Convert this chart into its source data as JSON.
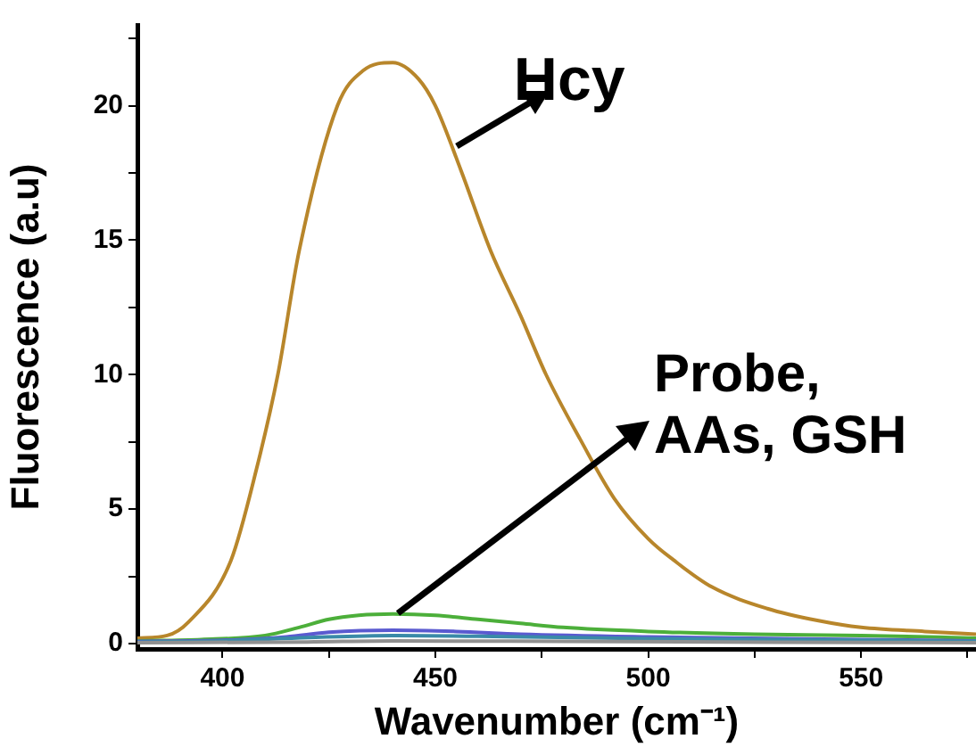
{
  "chart_data": {
    "type": "line",
    "xlabel": "Wavenumber (cm⁻¹)",
    "ylabel": "Fluorescence (a.u)",
    "xlim": [
      380,
      577
    ],
    "ylim": [
      -0.2,
      23
    ],
    "xticks": [
      400,
      {
        "value": 425,
        "label": null
      },
      450,
      {
        "value": 475,
        "label": null
      },
      500,
      {
        "value": 525,
        "label": null
      },
      550,
      {
        "value": 575,
        "label": null
      }
    ],
    "yticks": [
      0,
      {
        "value": 2.5,
        "label": null
      },
      5,
      {
        "value": 7.5,
        "label": null
      },
      10,
      {
        "value": 12.5,
        "label": null
      },
      15,
      {
        "value": 17.5,
        "label": null
      },
      20,
      {
        "value": 22.5,
        "label": null
      }
    ],
    "grid": false,
    "legend": false,
    "marker": "none",
    "line_style": "solid",
    "annotations": [
      {
        "text": "Hcy",
        "x": 455,
        "y": 18.5
      },
      {
        "text": "Probe,\nAAs, GSH",
        "x": 441,
        "y": 1.1
      }
    ],
    "series": [
      {
        "color": "#b8862b",
        "x": [
          380,
          387,
          392,
          402,
          408,
          413,
          418,
          427,
          433,
          440,
          446,
          450,
          456,
          463,
          470,
          476,
          484,
          492,
          500,
          506,
          515,
          528,
          540,
          550,
          565,
          577
        ],
        "values": [
          0.2,
          0.3,
          0.8,
          3.1,
          6.5,
          10,
          14.6,
          20,
          21.3,
          21.6,
          21,
          20,
          17.6,
          14.6,
          12.2,
          10,
          7.6,
          5.4,
          3.9,
          3.1,
          2.1,
          1.3,
          0.85,
          0.6,
          0.45,
          0.35
        ]
      },
      {
        "color": "#4caf3a",
        "x": [
          380,
          395,
          410,
          418,
          425,
          432,
          440,
          450,
          460,
          470,
          480,
          500,
          525,
          550,
          577
        ],
        "values": [
          0.1,
          0.15,
          0.3,
          0.6,
          0.9,
          1.05,
          1.1,
          1.05,
          0.9,
          0.75,
          0.6,
          0.45,
          0.35,
          0.3,
          0.2
        ]
      },
      {
        "color": "#5a5ad0",
        "x": [
          380,
          400,
          415,
          425,
          440,
          455,
          470,
          500,
          550,
          577
        ],
        "values": [
          0.08,
          0.12,
          0.25,
          0.42,
          0.5,
          0.45,
          0.35,
          0.25,
          0.15,
          0.1
        ]
      },
      {
        "color": "#3a8aa8",
        "x": [
          380,
          400,
          420,
          440,
          460,
          500,
          550,
          577
        ],
        "values": [
          0.05,
          0.1,
          0.22,
          0.3,
          0.27,
          0.18,
          0.12,
          0.08
        ]
      },
      {
        "color": "#909090",
        "x": [
          380,
          420,
          440,
          480,
          530,
          577
        ],
        "values": [
          0.03,
          0.06,
          0.1,
          0.08,
          0.05,
          0.03
        ]
      }
    ]
  }
}
